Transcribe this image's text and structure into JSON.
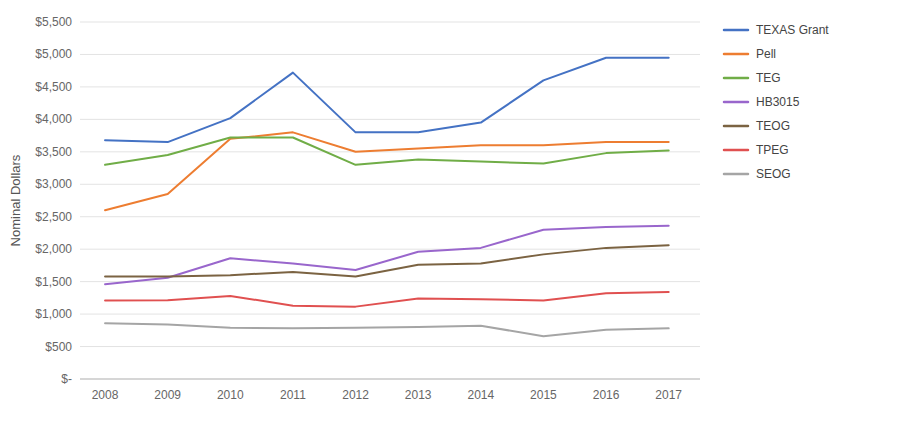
{
  "chart_data": {
    "type": "line",
    "y_label": "Nominal Dollars",
    "x": [
      2008,
      2009,
      2010,
      2011,
      2012,
      2013,
      2014,
      2015,
      2016,
      2017
    ],
    "xlim": [
      2007.6,
      2017.5
    ],
    "xticks": [
      2008,
      2009,
      2010,
      2011,
      2012,
      2013,
      2014,
      2015,
      2016,
      2017
    ],
    "ylim": [
      0,
      5500
    ],
    "yticks": [
      {
        "value": 0,
        "label": "$-"
      },
      {
        "value": 500,
        "label": "$500"
      },
      {
        "value": 1000,
        "label": "$1,000"
      },
      {
        "value": 1500,
        "label": "$1,500"
      },
      {
        "value": 2000,
        "label": "$2,000"
      },
      {
        "value": 2500,
        "label": "$2,500"
      },
      {
        "value": 3000,
        "label": "$3,000"
      },
      {
        "value": 3500,
        "label": "$3,500"
      },
      {
        "value": 4000,
        "label": "$4,000"
      },
      {
        "value": 4500,
        "label": "$4,500"
      },
      {
        "value": 5000,
        "label": "$5,000"
      },
      {
        "value": 5500,
        "label": "$5,500"
      }
    ],
    "grid": true,
    "legend": "right",
    "series": [
      {
        "name": "TEXAS Grant",
        "color": "#4472C4",
        "values": [
          3680,
          3650,
          4020,
          4720,
          3800,
          3800,
          3950,
          4600,
          4950,
          4950
        ]
      },
      {
        "name": "Pell",
        "color": "#ED7D31",
        "values": [
          2600,
          2850,
          3700,
          3800,
          3500,
          3550,
          3600,
          3600,
          3650,
          3650
        ]
      },
      {
        "name": "TEG",
        "color": "#70AD47",
        "values": [
          3300,
          3450,
          3720,
          3720,
          3300,
          3380,
          3350,
          3320,
          3480,
          3520
        ]
      },
      {
        "name": "HB3015",
        "color": "#9966CC",
        "values": [
          1460,
          1560,
          1860,
          1780,
          1680,
          1960,
          2020,
          2300,
          2340,
          2360
        ]
      },
      {
        "name": "TEOG",
        "color": "#7B6342",
        "values": [
          1580,
          1580,
          1600,
          1650,
          1580,
          1760,
          1780,
          1920,
          2020,
          2060
        ]
      },
      {
        "name": "TPEG",
        "color": "#E05050",
        "values": [
          1210,
          1215,
          1280,
          1130,
          1115,
          1240,
          1230,
          1210,
          1320,
          1340
        ]
      },
      {
        "name": "SEOG",
        "color": "#A5A5A5",
        "values": [
          860,
          840,
          790,
          780,
          790,
          800,
          820,
          660,
          760,
          780
        ]
      }
    ]
  }
}
